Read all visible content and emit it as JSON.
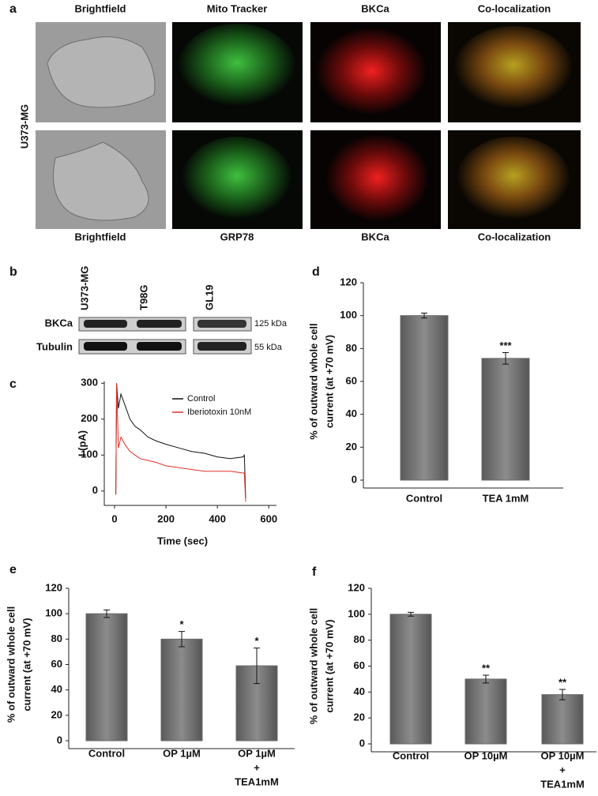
{
  "panel_a": {
    "letter": "a",
    "row_label": "U373-MG",
    "top_labels": [
      "Brightfield",
      "Mito Tracker",
      "BKCa",
      "Co-localization"
    ],
    "bottom_labels": [
      "Brightfield",
      "GRP78",
      "BKCa",
      "Co-localization"
    ]
  },
  "panel_b": {
    "letter": "b",
    "lanes": [
      "U373-MG",
      "T98G",
      "GL19"
    ],
    "rows": [
      {
        "name": "BKCa",
        "size": "125 kDa"
      },
      {
        "name": "Tubulin",
        "size": "55 kDa"
      }
    ]
  },
  "chart_data": [
    {
      "type": "line",
      "panel": "c",
      "xlabel": "Time (sec)",
      "ylabel": "I (pA)",
      "x": [
        5,
        8,
        15,
        25,
        40,
        60,
        80,
        100,
        130,
        160,
        200,
        250,
        300,
        350,
        400,
        450,
        500,
        505,
        510
      ],
      "series": [
        {
          "name": "Control",
          "color": "#111111",
          "values": [
            -10,
            300,
            230,
            270,
            240,
            200,
            180,
            170,
            150,
            140,
            130,
            120,
            110,
            105,
            95,
            90,
            95,
            100,
            -20
          ]
        },
        {
          "name": "Iberiotoxin 10nM",
          "color": "#e0302a",
          "values": [
            -10,
            300,
            120,
            150,
            130,
            110,
            100,
            90,
            85,
            80,
            70,
            65,
            60,
            55,
            55,
            55,
            50,
            50,
            -30
          ]
        }
      ],
      "xlim": [
        -40,
        630
      ],
      "ylim": [
        -40,
        305
      ],
      "xticks": [
        0,
        200,
        400,
        600
      ],
      "yticks": [
        0,
        100,
        200,
        300
      ]
    },
    {
      "type": "bar",
      "panel": "d",
      "ylabel": [
        "% of outward whole cell",
        "current (at +70 mV)"
      ],
      "categories": [
        "Control",
        "TEA 1mM"
      ],
      "values": [
        100,
        74
      ],
      "errors": [
        1.5,
        3.5
      ],
      "annotations": [
        null,
        "***"
      ],
      "color": "#6b6b6b",
      "ylim": [
        0,
        120
      ],
      "yticks": [
        0,
        20,
        40,
        60,
        80,
        100,
        120
      ]
    },
    {
      "type": "bar",
      "panel": "e",
      "ylabel": [
        "% of outward whole cell",
        "current (at +70 mV)"
      ],
      "categories": [
        "Control",
        "OP 1µM",
        [
          "OP 1µM",
          "+",
          "TEA1mM"
        ]
      ],
      "values": [
        100,
        80,
        59
      ],
      "errors": [
        3,
        6,
        14
      ],
      "annotations": [
        null,
        "*",
        "*"
      ],
      "color": "#6b6b6b",
      "ylim": [
        0,
        120
      ],
      "yticks": [
        0,
        20,
        40,
        60,
        80,
        100,
        120
      ]
    },
    {
      "type": "bar",
      "panel": "f",
      "ylabel": [
        "% of outward whole cell",
        "current (at +70 mV)"
      ],
      "categories": [
        "Control",
        "OP 10µM",
        [
          "OP 10µM",
          "+",
          "TEA1mM"
        ]
      ],
      "values": [
        100,
        50,
        38
      ],
      "errors": [
        1.5,
        3,
        4
      ],
      "annotations": [
        null,
        "**",
        "**"
      ],
      "color": "#6b6b6b",
      "ylim": [
        0,
        120
      ],
      "yticks": [
        0,
        20,
        40,
        60,
        80,
        100,
        120
      ]
    }
  ]
}
